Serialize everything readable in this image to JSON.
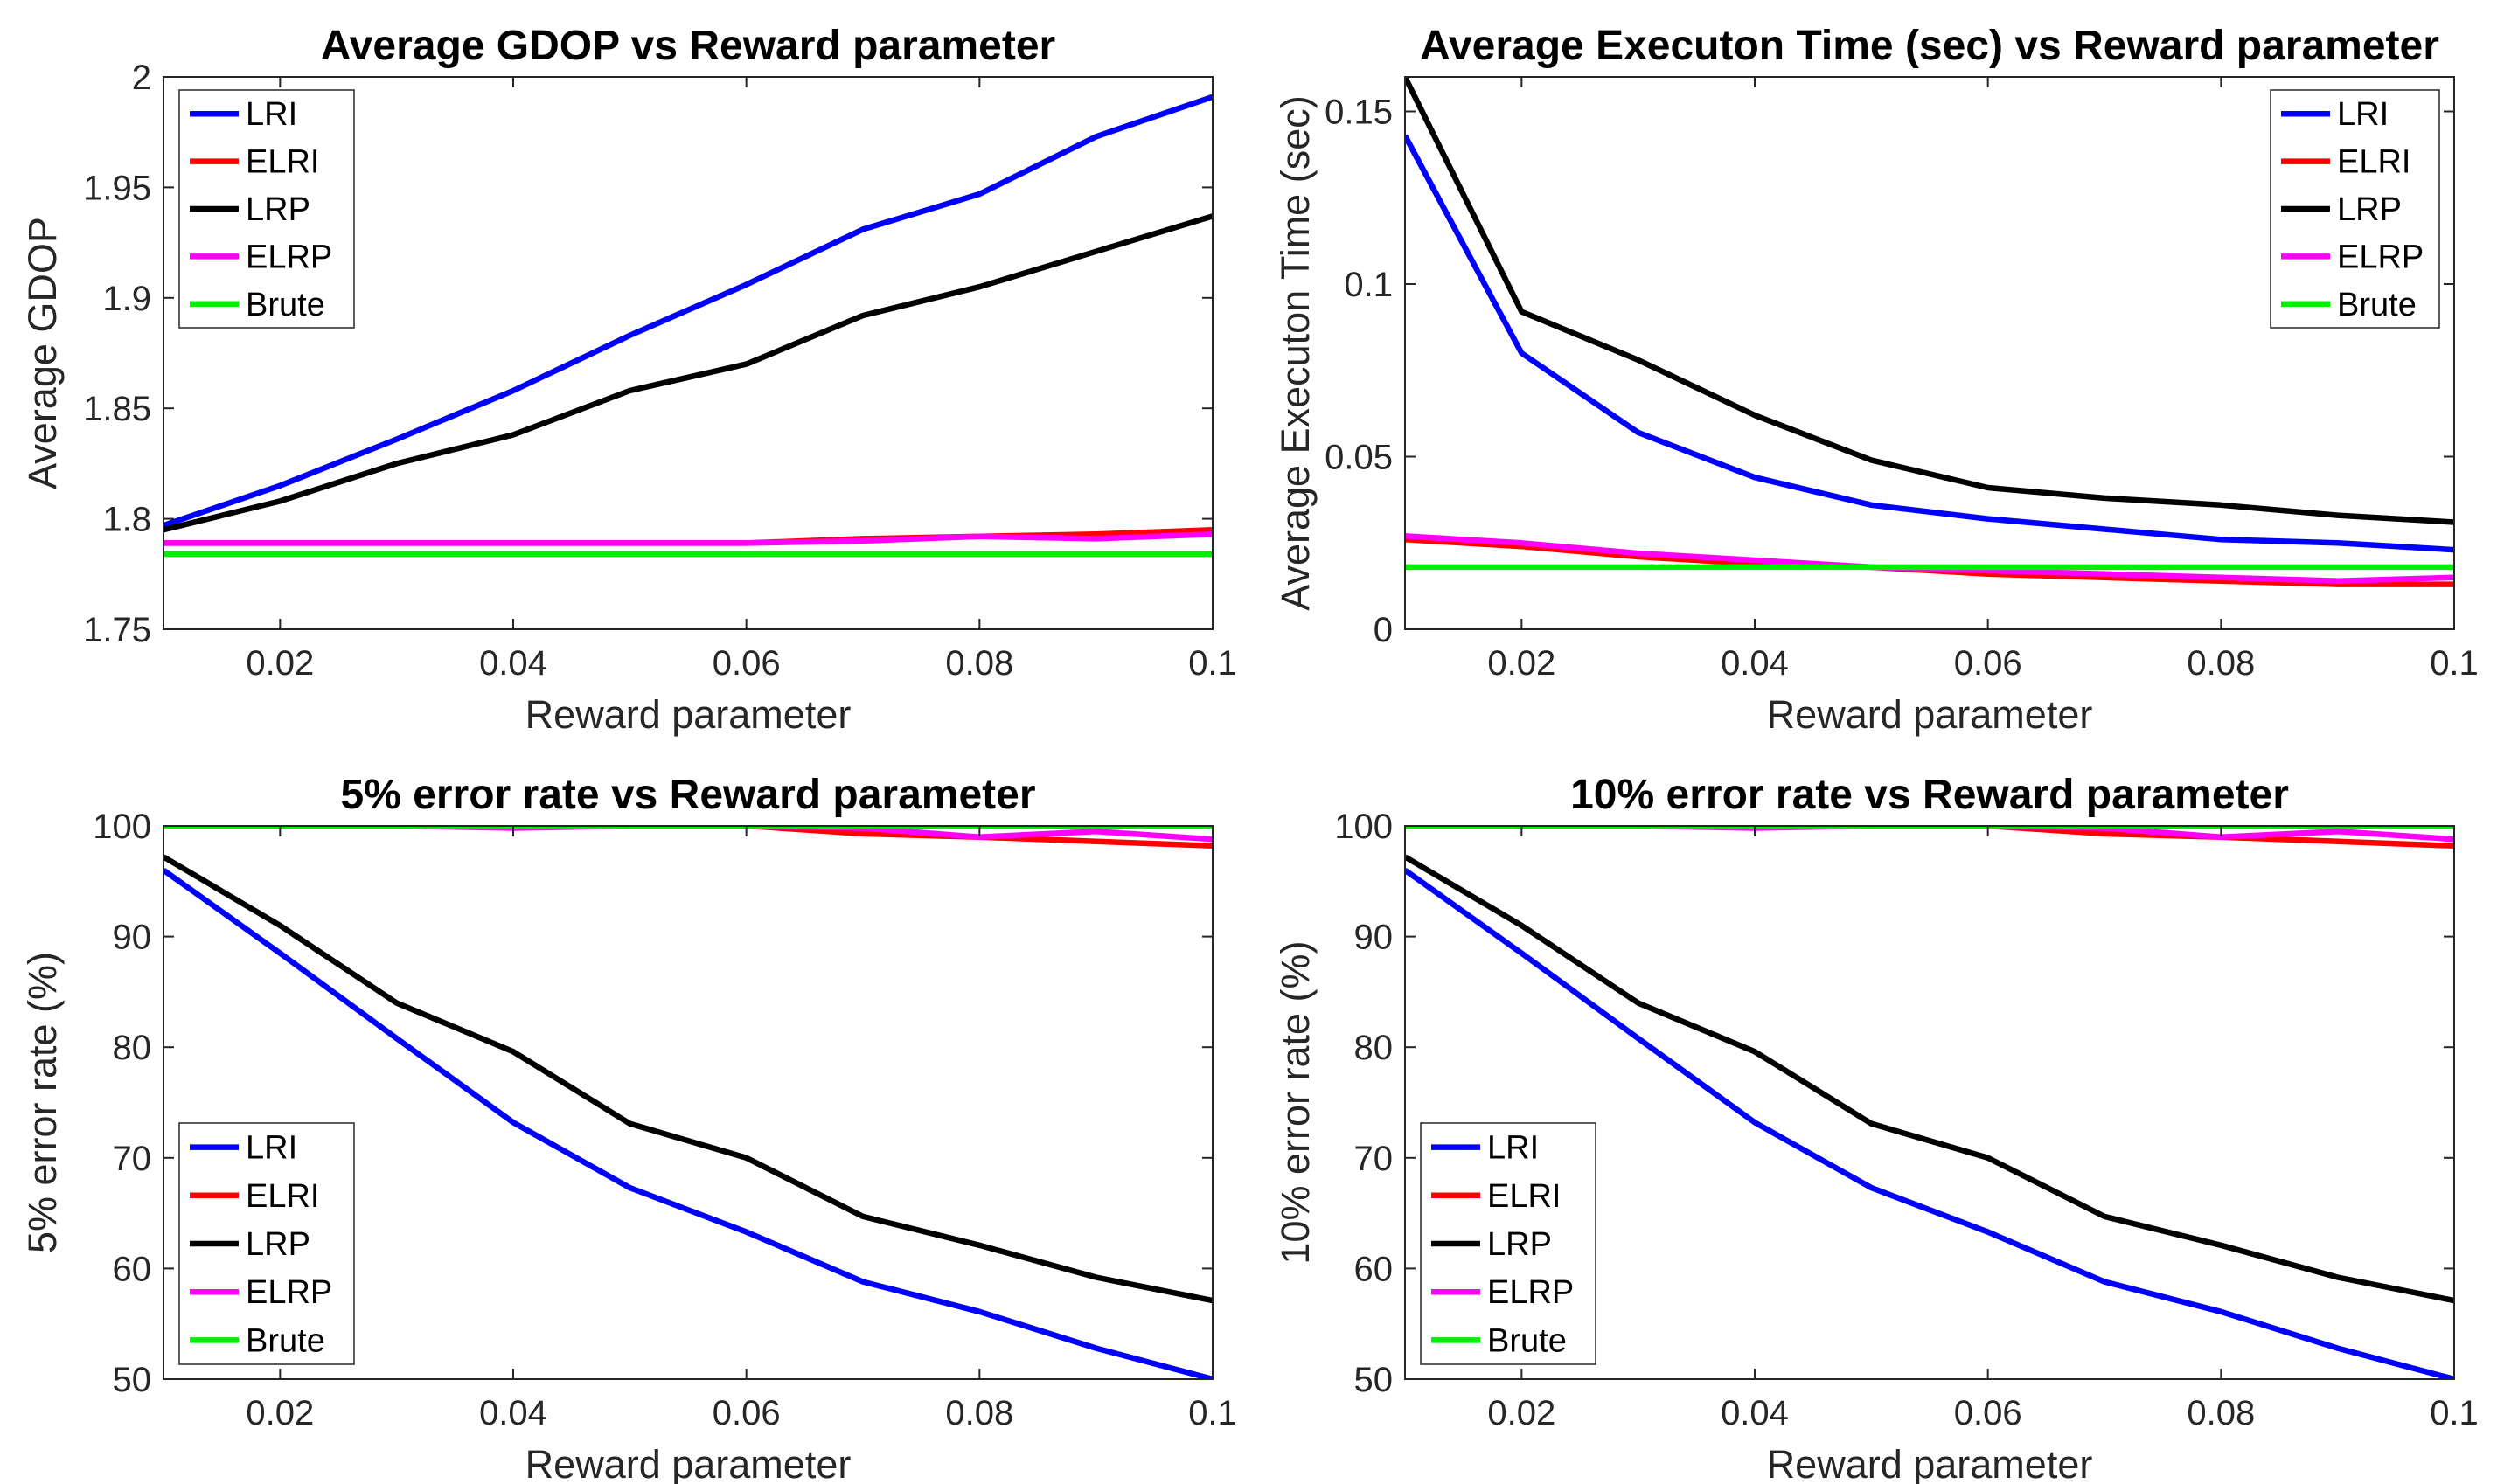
{
  "chart_data": [
    {
      "type": "line",
      "title": "Average GDOP vs Reward parameter",
      "xlabel": "Reward parameter",
      "ylabel": "Average GDOP",
      "xlim": [
        0.01,
        0.1
      ],
      "ylim": [
        1.75,
        2
      ],
      "xticks": [
        "0.02",
        "0.04",
        "0.06",
        "0.08",
        "0.1"
      ],
      "yticks": [
        "1.75",
        "1.8",
        "1.85",
        "1.9",
        "1.95",
        "2"
      ],
      "legend_position": "top-left",
      "grid": false,
      "x": [
        0.01,
        0.02,
        0.03,
        0.04,
        0.05,
        0.06,
        0.07,
        0.08,
        0.09,
        0.1
      ],
      "series": [
        {
          "name": "LRI",
          "color": "#0000ff",
          "values": [
            1.797,
            1.815,
            1.836,
            1.858,
            1.883,
            1.906,
            1.931,
            1.947,
            1.973,
            1.991
          ]
        },
        {
          "name": "ELRI",
          "color": "#ff0000",
          "values": [
            1.789,
            1.789,
            1.789,
            1.789,
            1.789,
            1.789,
            1.791,
            1.792,
            1.793,
            1.795
          ]
        },
        {
          "name": "LRP",
          "color": "#000000",
          "values": [
            1.795,
            1.808,
            1.825,
            1.838,
            1.858,
            1.87,
            1.892,
            1.905,
            1.921,
            1.937
          ]
        },
        {
          "name": "ELRP",
          "color": "#ff00ff",
          "values": [
            1.789,
            1.789,
            1.789,
            1.789,
            1.789,
            1.789,
            1.79,
            1.792,
            1.791,
            1.793
          ]
        },
        {
          "name": "Brute",
          "color": "#00ee00",
          "values": [
            1.784,
            1.784,
            1.784,
            1.784,
            1.784,
            1.784,
            1.784,
            1.784,
            1.784,
            1.784
          ]
        }
      ]
    },
    {
      "type": "line",
      "title": "Average Executon Time (sec) vs Reward parameter",
      "xlabel": "Reward parameter",
      "ylabel": "Average Executon Time (sec)",
      "xlim": [
        0.01,
        0.1
      ],
      "ylim": [
        0,
        0.16
      ],
      "xticks": [
        "0.02",
        "0.04",
        "0.06",
        "0.08",
        "0.1"
      ],
      "yticks": [
        "0",
        "0.05",
        "0.1",
        "0.15"
      ],
      "legend_position": "top-right",
      "grid": false,
      "x": [
        0.01,
        0.02,
        0.03,
        0.04,
        0.05,
        0.06,
        0.07,
        0.08,
        0.09,
        0.1
      ],
      "series": [
        {
          "name": "LRI",
          "color": "#0000ff",
          "values": [
            0.143,
            0.08,
            0.057,
            0.044,
            0.036,
            0.032,
            0.029,
            0.026,
            0.025,
            0.023
          ]
        },
        {
          "name": "ELRI",
          "color": "#ff0000",
          "values": [
            0.026,
            0.024,
            0.021,
            0.019,
            0.018,
            0.016,
            0.015,
            0.014,
            0.013,
            0.013
          ]
        },
        {
          "name": "LRP",
          "color": "#000000",
          "values": [
            0.16,
            0.092,
            0.078,
            0.062,
            0.049,
            0.041,
            0.038,
            0.036,
            0.033,
            0.031
          ]
        },
        {
          "name": "ELRP",
          "color": "#ff00ff",
          "values": [
            0.027,
            0.025,
            0.022,
            0.02,
            0.018,
            0.017,
            0.016,
            0.015,
            0.014,
            0.015
          ]
        },
        {
          "name": "Brute",
          "color": "#00ee00",
          "values": [
            0.018,
            0.018,
            0.018,
            0.018,
            0.018,
            0.018,
            0.018,
            0.018,
            0.018,
            0.018
          ]
        }
      ]
    },
    {
      "type": "line",
      "title": "5% error rate vs Reward parameter",
      "xlabel": "Reward parameter",
      "ylabel": "5% error rate (%)",
      "xlim": [
        0.01,
        0.1
      ],
      "ylim": [
        50,
        100
      ],
      "xticks": [
        "0.02",
        "0.04",
        "0.06",
        "0.08",
        "0.1"
      ],
      "yticks": [
        "50",
        "60",
        "70",
        "80",
        "90",
        "100"
      ],
      "legend_position": "bottom-left",
      "grid": false,
      "x": [
        0.01,
        0.02,
        0.03,
        0.04,
        0.05,
        0.06,
        0.07,
        0.08,
        0.09,
        0.1
      ],
      "series": [
        {
          "name": "LRI",
          "color": "#0000ff",
          "values": [
            96,
            88.5,
            80.8,
            73.2,
            67.3,
            63.3,
            58.8,
            56.1,
            52.8,
            50
          ]
        },
        {
          "name": "ELRI",
          "color": "#ff0000",
          "values": [
            100,
            100,
            100,
            100,
            100,
            100,
            99.3,
            99,
            98.6,
            98.2
          ]
        },
        {
          "name": "LRP",
          "color": "#000000",
          "values": [
            97.2,
            91,
            84,
            79.6,
            73.1,
            70,
            64.7,
            62.1,
            59.2,
            57.1
          ]
        },
        {
          "name": "ELRP",
          "color": "#ff00ff",
          "values": [
            100,
            100,
            100,
            99.8,
            100,
            100,
            99.8,
            99,
            99.5,
            98.8
          ]
        },
        {
          "name": "Brute",
          "color": "#00ee00",
          "values": [
            100,
            100,
            100,
            100,
            100,
            100,
            100,
            100,
            100,
            100
          ]
        }
      ]
    },
    {
      "type": "line",
      "title": "10% error rate vs Reward parameter",
      "xlabel": "Reward parameter",
      "ylabel": "10% error rate (%)",
      "xlim": [
        0.01,
        0.1
      ],
      "ylim": [
        50,
        100
      ],
      "xticks": [
        "0.02",
        "0.04",
        "0.06",
        "0.08",
        "0.1"
      ],
      "yticks": [
        "50",
        "60",
        "70",
        "80",
        "90",
        "100"
      ],
      "legend_position": "bottom-left",
      "grid": false,
      "x": [
        0.01,
        0.02,
        0.03,
        0.04,
        0.05,
        0.06,
        0.07,
        0.08,
        0.09,
        0.1
      ],
      "series": [
        {
          "name": "LRI",
          "color": "#0000ff",
          "values": [
            96,
            88.5,
            80.8,
            73.2,
            67.3,
            63.3,
            58.8,
            56.1,
            52.8,
            50
          ]
        },
        {
          "name": "ELRI",
          "color": "#ff0000",
          "values": [
            100,
            100,
            100,
            100,
            100,
            100,
            99.3,
            99,
            98.6,
            98.2
          ]
        },
        {
          "name": "LRP",
          "color": "#000000",
          "values": [
            97.2,
            91,
            84,
            79.6,
            73.1,
            70,
            64.7,
            62.1,
            59.2,
            57.1
          ]
        },
        {
          "name": "ELRP",
          "color": "#ff00ff",
          "values": [
            100,
            100,
            100,
            99.8,
            100,
            100,
            99.8,
            99,
            99.5,
            98.8
          ]
        },
        {
          "name": "Brute",
          "color": "#00ee00",
          "values": [
            100,
            100,
            100,
            100,
            100,
            100,
            100,
            100,
            100,
            100
          ]
        }
      ]
    }
  ]
}
